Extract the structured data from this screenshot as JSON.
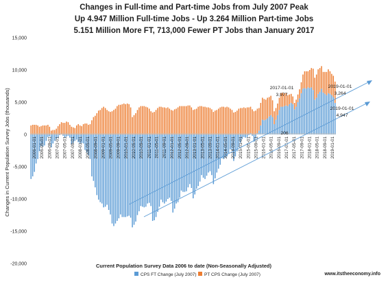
{
  "chart_data": {
    "type": "bar",
    "title_lines": [
      "Changes in Full-time and Part-time Jobs from July 2007 Peak",
      "Up 4.947 Million Full-time Jobs - Up 3.264 Million Part-time Jobs",
      "5.151 Million More FT, 713,000 Fewer PT Jobs than January 2017"
    ],
    "ylabel": "Changes in Current Population Survey Jobs (thousands)",
    "xlabel": "Current Population Survey Data 2006 to date (Non-Seasonally Adjusted)",
    "ylim": [
      -20000,
      15000
    ],
    "y_ticks": [
      15000,
      10000,
      5000,
      0,
      -5000,
      -10000,
      -15000,
      -20000
    ],
    "y_tick_labels": [
      "15,000",
      "10,000",
      "5,000",
      "0",
      "-5,000",
      "-10,000",
      "-15,000",
      "-20,000"
    ],
    "x_tick_labels": [
      "2006-01-01",
      "2006-05-01",
      "2006-09-01",
      "2007-01-01",
      "2007-05-01",
      "2007-09-01",
      "2008-01-01",
      "2008-05-01",
      "2008-09-01",
      "2009-01-01",
      "2009-05-01",
      "2009-09-01",
      "2010-01-01",
      "2010-05-01",
      "2010-09-01",
      "2011-01-01",
      "2011-05-01",
      "2011-09-01",
      "2012-01-01",
      "2012-05-01",
      "2012-09-01",
      "2013-01-01",
      "2013-05-01",
      "2013-09-01",
      "2014-01-01",
      "2014-05-01",
      "2014-09-01",
      "2015-01-01",
      "2015-05-01",
      "2015-09-01",
      "2016-01-01",
      "2016-05-01",
      "2016-09-01",
      "2017-01-01",
      "2017-05-01",
      "2017-09-01",
      "2018-01-01",
      "2018-05-01",
      "2018-09-01",
      "2019-01-01"
    ],
    "stacked": true,
    "series": [
      {
        "name": "CPS FT Change (July 2007)",
        "color": "#5b9bd5",
        "values": [
          -6900,
          -6500,
          -5800,
          -4500,
          -3800,
          -2600,
          -1800,
          -1900,
          -1700,
          -1000,
          -400,
          -300,
          -2000,
          -1400,
          -1000,
          -700,
          -500,
          -100,
          0,
          -200,
          -500,
          -300,
          -200,
          -500,
          -1500,
          -1300,
          -1000,
          -800,
          -1200,
          -1400,
          -1300,
          -1400,
          -2400,
          -2800,
          -3200,
          -3800,
          -6500,
          -7200,
          -8200,
          -9400,
          -10100,
          -10500,
          -10700,
          -11300,
          -11200,
          -10900,
          -11700,
          -12400,
          -13800,
          -14200,
          -13800,
          -13400,
          -13000,
          -12400,
          -12800,
          -12800,
          -12800,
          -12700,
          -12600,
          -12900,
          -14400,
          -14000,
          -13500,
          -12500,
          -11900,
          -11100,
          -11200,
          -11300,
          -11200,
          -10700,
          -10600,
          -11100,
          -13400,
          -13300,
          -12800,
          -12000,
          -11200,
          -10100,
          -10500,
          -10700,
          -10400,
          -10000,
          -9800,
          -10300,
          -12100,
          -11500,
          -10700,
          -10500,
          -9800,
          -8700,
          -8900,
          -8900,
          -8800,
          -8200,
          -7700,
          -8300,
          -9900,
          -9300,
          -8400,
          -8000,
          -7300,
          -6300,
          -6700,
          -6900,
          -6400,
          -5900,
          -5700,
          -6300,
          -7700,
          -6800,
          -5900,
          -5300,
          -4700,
          -3700,
          -3800,
          -3600,
          -3400,
          -2900,
          -2300,
          -2500,
          -4100,
          -3400,
          -2600,
          -2000,
          -1300,
          -700,
          -400,
          -500,
          -400,
          -100,
          200,
          -200,
          -1100,
          -600,
          200,
          600,
          1400,
          2300,
          2200,
          2300,
          2500,
          2800,
          3000,
          2700,
          1600,
          2300,
          3000,
          3800,
          4300,
          4300,
          4400,
          4500,
          4400,
          4700,
          4900,
          4700,
          3900,
          4300,
          5000,
          5600,
          6400,
          7100,
          7200,
          7100,
          7300,
          7200,
          7300,
          6900,
          5400,
          5700,
          6300,
          6600,
          7100,
          6500,
          6300,
          6100,
          6400,
          6300,
          6100,
          5800,
          4900
        ]
      },
      {
        "name": "PT CPS Change (July 2007)",
        "color": "#ed7d31",
        "values": [
          1400,
          1500,
          1500,
          1500,
          1400,
          1200,
          1300,
          1400,
          1400,
          1400,
          1500,
          1200,
          600,
          700,
          700,
          900,
          1300,
          1600,
          1900,
          1800,
          1800,
          2000,
          1900,
          1500,
          1200,
          1100,
          1000,
          1400,
          1600,
          1400,
          1300,
          1600,
          1700,
          1700,
          1500,
          1600,
          2200,
          2700,
          2900,
          3300,
          3700,
          3800,
          4100,
          4300,
          4100,
          3800,
          3600,
          3500,
          3600,
          3800,
          4000,
          4400,
          4600,
          4600,
          4700,
          4800,
          4700,
          4800,
          4700,
          4200,
          2700,
          3000,
          3300,
          3800,
          4200,
          4400,
          4400,
          4400,
          4300,
          4200,
          4000,
          3600,
          3400,
          3500,
          3800,
          4100,
          4300,
          4300,
          4200,
          4200,
          4100,
          4200,
          4000,
          3800,
          3700,
          3900,
          4000,
          4200,
          4400,
          4400,
          4400,
          4400,
          4400,
          4500,
          4500,
          4200,
          3800,
          3900,
          4000,
          4300,
          4400,
          4400,
          4300,
          4300,
          4200,
          4200,
          4100,
          3900,
          3500,
          3700,
          3800,
          4000,
          4200,
          4300,
          4300,
          4200,
          4300,
          4200,
          4000,
          3800,
          3400,
          3500,
          3700,
          4000,
          4100,
          4100,
          4200,
          4100,
          4200,
          4200,
          4100,
          3900,
          3600,
          3700,
          3800,
          3500,
          3500,
          3400,
          3300,
          3100,
          3200,
          3000,
          3000,
          2600,
          2000,
          1800,
          1800,
          1900,
          2100,
          2200,
          2000,
          1900,
          1700,
          1500,
          1400,
          1200,
          1000,
          1100,
          1200,
          1400,
          1700,
          2200,
          2600,
          2700,
          2500,
          2800,
          3000,
          3300,
          3400,
          3600,
          3800,
          3700,
          3500,
          3200,
          3400,
          3600,
          3700,
          3500,
          3300,
          3300,
          3300,
          3200,
          3200
        ]
      }
    ],
    "annotations": [
      {
        "label": "2017-01-01",
        "value": "3,977"
      },
      {
        "label": "",
        "value": "206"
      },
      {
        "label": "2019-01-01",
        "value": "3,264"
      },
      {
        "label": "2019-01-01",
        "value": "4,947"
      }
    ],
    "legend_position": "bottom",
    "grid": false
  },
  "footer": {
    "source": "www.itstheeconomy.info"
  }
}
